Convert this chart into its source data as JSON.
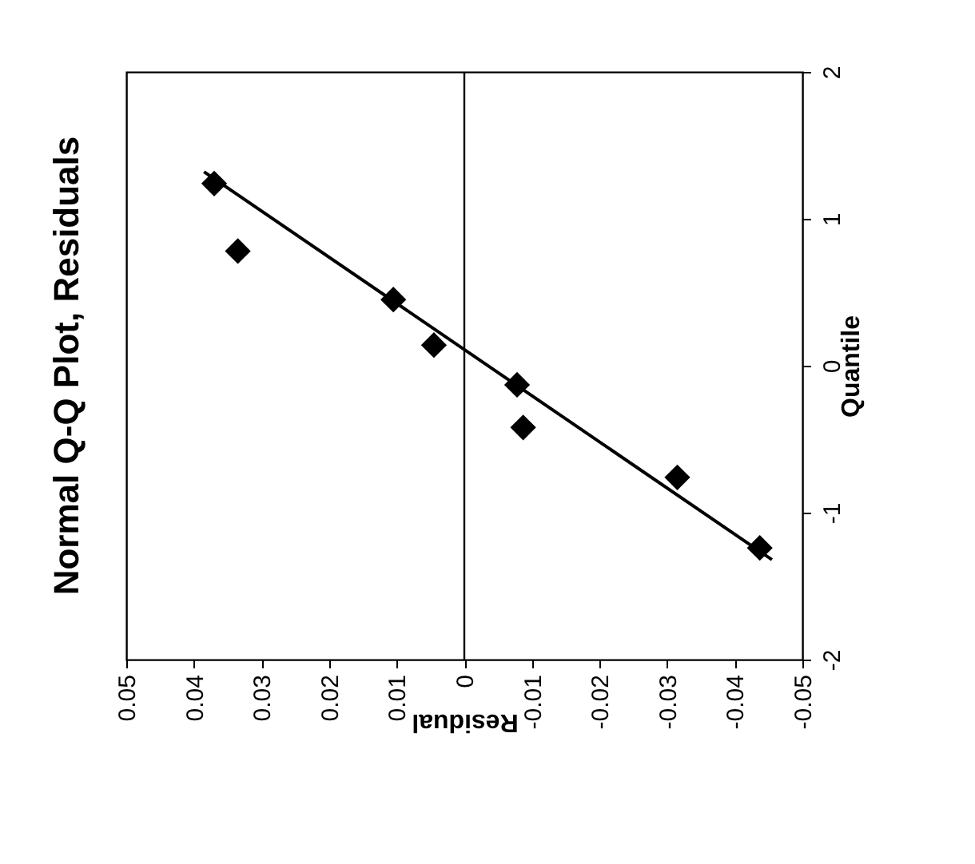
{
  "chart_data": {
    "type": "scatter",
    "title": "Normal Q-Q Plot, Residuals",
    "xlabel": "Residual",
    "ylabel": "Quantile",
    "x": [
      0.037,
      0.0335,
      0.0105,
      0.0045,
      -0.0078,
      -0.0087,
      -0.0315,
      -0.0437
    ],
    "series": [
      {
        "color": "#000000",
        "marker": "diamond",
        "values": [
          1.24,
          0.78,
          0.45,
          0.14,
          -0.13,
          -0.42,
          -0.76,
          -1.24
        ]
      },
      {
        "type": "line",
        "color": "#000000",
        "x": [
          0.0385,
          -0.0455
        ],
        "values": [
          1.32,
          -1.32
        ]
      }
    ],
    "xlim": [
      0.05,
      -0.05
    ],
    "xticks": [
      0.05,
      0.04,
      0.03,
      0.02,
      0.01,
      0,
      -0.01,
      -0.02,
      -0.03,
      -0.04,
      -0.05
    ],
    "ylim": [
      -2,
      2
    ],
    "yticks": [
      -2,
      -1,
      0,
      1,
      2
    ],
    "ref_lines": [
      {
        "axis": "x",
        "value": 0,
        "color": "#000000"
      }
    ],
    "grid": false
  }
}
